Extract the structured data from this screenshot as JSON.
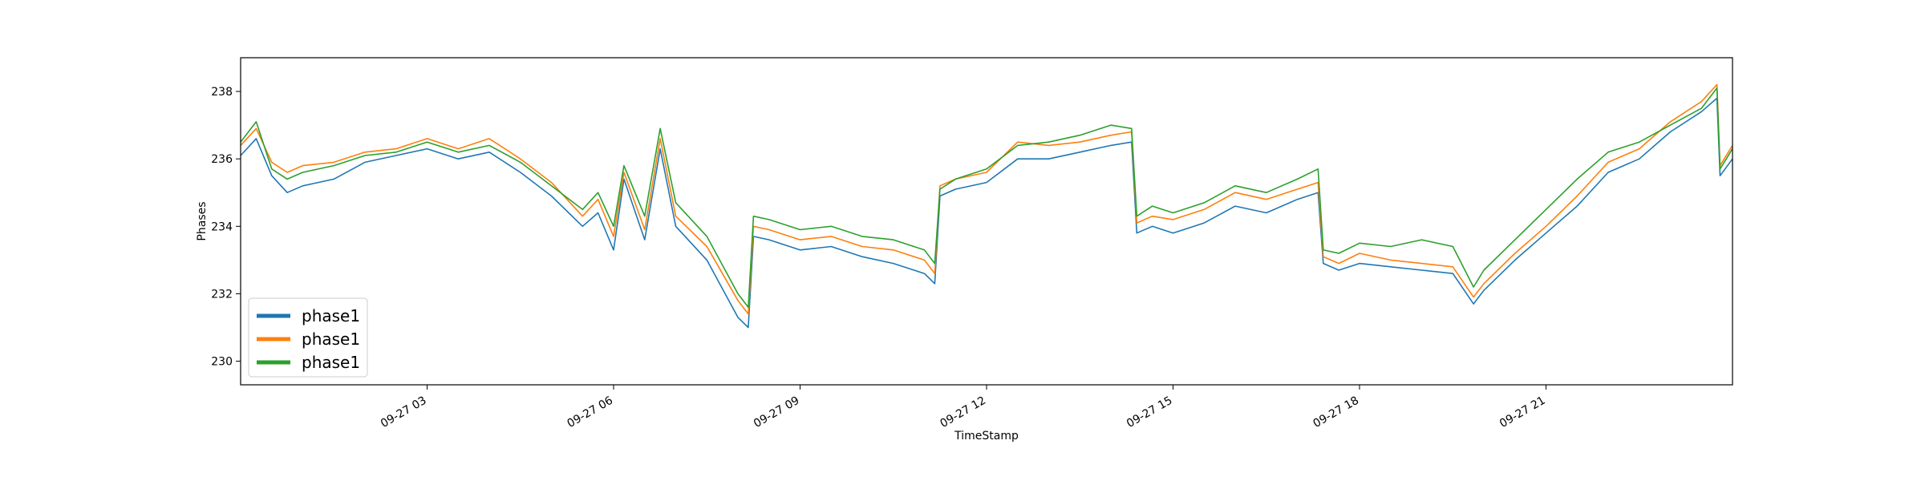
{
  "chart_data": {
    "type": "line",
    "title": "",
    "xlabel": "TimeStamp",
    "ylabel": "Phases",
    "xlim": [
      "2023-09-27 00:00",
      "2023-09-28 00:00"
    ],
    "ylim": [
      229.3,
      239.0
    ],
    "x_ticks": [
      {
        "x": "2023-09-27 03:00",
        "label": "09-27 03"
      },
      {
        "x": "2023-09-27 06:00",
        "label": "09-27 06"
      },
      {
        "x": "2023-09-27 09:00",
        "label": "09-27 09"
      },
      {
        "x": "2023-09-27 12:00",
        "label": "09-27 12"
      },
      {
        "x": "2023-09-27 15:00",
        "label": "09-27 15"
      },
      {
        "x": "2023-09-27 18:00",
        "label": "09-27 18"
      },
      {
        "x": "2023-09-27 21:00",
        "label": "09-27 21"
      }
    ],
    "y_ticks": [
      230,
      232,
      234,
      236,
      238
    ],
    "grid": false,
    "legend": {
      "placement": "lower-left",
      "entries": [
        "phase1",
        "phase1",
        "phase1"
      ]
    },
    "series": [
      {
        "name": "phase1",
        "color": "#1f77b4",
        "x": [
          "2023-09-27 00:00",
          "2023-09-27 00:15",
          "2023-09-27 00:30",
          "2023-09-27 00:45",
          "2023-09-27 01:00",
          "2023-09-27 01:30",
          "2023-09-27 02:00",
          "2023-09-27 02:30",
          "2023-09-27 03:00",
          "2023-09-27 03:30",
          "2023-09-27 04:00",
          "2023-09-27 04:30",
          "2023-09-27 05:00",
          "2023-09-27 05:30",
          "2023-09-27 05:45",
          "2023-09-27 06:00",
          "2023-09-27 06:10",
          "2023-09-27 06:30",
          "2023-09-27 06:45",
          "2023-09-27 07:00",
          "2023-09-27 07:30",
          "2023-09-27 08:00",
          "2023-09-27 08:10",
          "2023-09-27 08:15",
          "2023-09-27 08:30",
          "2023-09-27 09:00",
          "2023-09-27 09:30",
          "2023-09-27 10:00",
          "2023-09-27 10:30",
          "2023-09-27 11:00",
          "2023-09-27 11:10",
          "2023-09-27 11:15",
          "2023-09-27 11:30",
          "2023-09-27 12:00",
          "2023-09-27 12:30",
          "2023-09-27 13:00",
          "2023-09-27 13:30",
          "2023-09-27 14:00",
          "2023-09-27 14:20",
          "2023-09-27 14:25",
          "2023-09-27 14:40",
          "2023-09-27 15:00",
          "2023-09-27 15:30",
          "2023-09-27 16:00",
          "2023-09-27 16:30",
          "2023-09-27 17:00",
          "2023-09-27 17:20",
          "2023-09-27 17:25",
          "2023-09-27 17:40",
          "2023-09-27 18:00",
          "2023-09-27 18:30",
          "2023-09-27 19:00",
          "2023-09-27 19:30",
          "2023-09-27 19:50",
          "2023-09-27 20:00",
          "2023-09-27 20:30",
          "2023-09-27 21:00",
          "2023-09-27 21:30",
          "2023-09-27 22:00",
          "2023-09-27 22:30",
          "2023-09-27 23:00",
          "2023-09-27 23:30",
          "2023-09-27 23:45",
          "2023-09-27 23:48",
          "2023-09-28 00:00"
        ],
        "y": [
          236.1,
          236.6,
          235.5,
          235.0,
          235.2,
          235.4,
          235.9,
          236.1,
          236.3,
          236.0,
          236.2,
          235.6,
          234.9,
          234.0,
          234.4,
          233.3,
          235.4,
          233.6,
          236.3,
          234.0,
          233.0,
          231.3,
          231.0,
          233.7,
          233.6,
          233.3,
          233.4,
          233.1,
          232.9,
          232.6,
          232.3,
          234.9,
          235.1,
          235.3,
          236.0,
          236.0,
          236.2,
          236.4,
          236.5,
          233.8,
          234.0,
          233.8,
          234.1,
          234.6,
          234.4,
          234.8,
          235.0,
          232.9,
          232.7,
          232.9,
          232.8,
          232.7,
          232.6,
          231.7,
          232.1,
          233.0,
          233.8,
          234.6,
          235.6,
          236.0,
          236.8,
          237.4,
          237.8,
          235.5,
          236.0
        ]
      },
      {
        "name": "phase1",
        "color": "#ff7f0e",
        "x": [
          "2023-09-27 00:00",
          "2023-09-27 00:15",
          "2023-09-27 00:30",
          "2023-09-27 00:45",
          "2023-09-27 01:00",
          "2023-09-27 01:30",
          "2023-09-27 02:00",
          "2023-09-27 02:30",
          "2023-09-27 03:00",
          "2023-09-27 03:30",
          "2023-09-27 04:00",
          "2023-09-27 04:30",
          "2023-09-27 05:00",
          "2023-09-27 05:30",
          "2023-09-27 05:45",
          "2023-09-27 06:00",
          "2023-09-27 06:10",
          "2023-09-27 06:30",
          "2023-09-27 06:45",
          "2023-09-27 07:00",
          "2023-09-27 07:30",
          "2023-09-27 08:00",
          "2023-09-27 08:10",
          "2023-09-27 08:15",
          "2023-09-27 08:30",
          "2023-09-27 09:00",
          "2023-09-27 09:30",
          "2023-09-27 10:00",
          "2023-09-27 10:30",
          "2023-09-27 11:00",
          "2023-09-27 11:10",
          "2023-09-27 11:15",
          "2023-09-27 11:30",
          "2023-09-27 12:00",
          "2023-09-27 12:30",
          "2023-09-27 13:00",
          "2023-09-27 13:30",
          "2023-09-27 14:00",
          "2023-09-27 14:20",
          "2023-09-27 14:25",
          "2023-09-27 14:40",
          "2023-09-27 15:00",
          "2023-09-27 15:30",
          "2023-09-27 16:00",
          "2023-09-27 16:30",
          "2023-09-27 17:00",
          "2023-09-27 17:20",
          "2023-09-27 17:25",
          "2023-09-27 17:40",
          "2023-09-27 18:00",
          "2023-09-27 18:30",
          "2023-09-27 19:00",
          "2023-09-27 19:30",
          "2023-09-27 19:50",
          "2023-09-27 20:00",
          "2023-09-27 20:30",
          "2023-09-27 21:00",
          "2023-09-27 21:30",
          "2023-09-27 22:00",
          "2023-09-27 22:30",
          "2023-09-27 23:00",
          "2023-09-27 23:30",
          "2023-09-27 23:45",
          "2023-09-27 23:48",
          "2023-09-28 00:00"
        ],
        "y": [
          236.4,
          236.9,
          235.9,
          235.6,
          235.8,
          235.9,
          236.2,
          236.3,
          236.6,
          236.3,
          236.6,
          236.0,
          235.3,
          234.3,
          234.8,
          233.7,
          235.6,
          233.9,
          236.6,
          234.3,
          233.4,
          231.8,
          231.4,
          234.0,
          233.9,
          233.6,
          233.7,
          233.4,
          233.3,
          233.0,
          232.6,
          235.2,
          235.4,
          235.6,
          236.5,
          236.4,
          236.5,
          236.7,
          236.8,
          234.1,
          234.3,
          234.2,
          234.5,
          235.0,
          234.8,
          235.1,
          235.3,
          233.1,
          232.9,
          233.2,
          233.0,
          232.9,
          232.8,
          231.9,
          232.3,
          233.2,
          234.0,
          234.9,
          235.9,
          236.3,
          237.1,
          237.7,
          238.2,
          235.8,
          236.4
        ]
      },
      {
        "name": "phase1",
        "color": "#2ca02c",
        "x": [
          "2023-09-27 00:00",
          "2023-09-27 00:15",
          "2023-09-27 00:30",
          "2023-09-27 00:45",
          "2023-09-27 01:00",
          "2023-09-27 01:30",
          "2023-09-27 02:00",
          "2023-09-27 02:30",
          "2023-09-27 03:00",
          "2023-09-27 03:30",
          "2023-09-27 04:00",
          "2023-09-27 04:30",
          "2023-09-27 05:00",
          "2023-09-27 05:30",
          "2023-09-27 05:45",
          "2023-09-27 06:00",
          "2023-09-27 06:10",
          "2023-09-27 06:30",
          "2023-09-27 06:45",
          "2023-09-27 07:00",
          "2023-09-27 07:30",
          "2023-09-27 08:00",
          "2023-09-27 08:10",
          "2023-09-27 08:15",
          "2023-09-27 08:30",
          "2023-09-27 09:00",
          "2023-09-27 09:30",
          "2023-09-27 10:00",
          "2023-09-27 10:30",
          "2023-09-27 11:00",
          "2023-09-27 11:10",
          "2023-09-27 11:15",
          "2023-09-27 11:30",
          "2023-09-27 12:00",
          "2023-09-27 12:30",
          "2023-09-27 13:00",
          "2023-09-27 13:30",
          "2023-09-27 14:00",
          "2023-09-27 14:20",
          "2023-09-27 14:25",
          "2023-09-27 14:40",
          "2023-09-27 15:00",
          "2023-09-27 15:30",
          "2023-09-27 16:00",
          "2023-09-27 16:30",
          "2023-09-27 17:00",
          "2023-09-27 17:20",
          "2023-09-27 17:25",
          "2023-09-27 17:40",
          "2023-09-27 18:00",
          "2023-09-27 18:30",
          "2023-09-27 19:00",
          "2023-09-27 19:30",
          "2023-09-27 19:50",
          "2023-09-27 20:00",
          "2023-09-27 20:30",
          "2023-09-27 21:00",
          "2023-09-27 21:30",
          "2023-09-27 22:00",
          "2023-09-27 22:30",
          "2023-09-27 23:00",
          "2023-09-27 23:30",
          "2023-09-27 23:45",
          "2023-09-27 23:48",
          "2023-09-28 00:00"
        ],
        "y": [
          236.5,
          237.1,
          235.7,
          235.4,
          235.6,
          235.8,
          236.1,
          236.2,
          236.5,
          236.2,
          236.4,
          235.9,
          235.2,
          234.5,
          235.0,
          234.0,
          235.8,
          234.3,
          236.9,
          234.7,
          233.7,
          232.0,
          231.6,
          234.3,
          234.2,
          233.9,
          234.0,
          233.7,
          233.6,
          233.3,
          232.9,
          235.1,
          235.4,
          235.7,
          236.4,
          236.5,
          236.7,
          237.0,
          236.9,
          234.3,
          234.6,
          234.4,
          234.7,
          235.2,
          235.0,
          235.4,
          235.7,
          233.3,
          233.2,
          233.5,
          233.4,
          233.6,
          233.4,
          232.2,
          232.7,
          233.6,
          234.5,
          235.4,
          236.2,
          236.5,
          237.0,
          237.5,
          238.1,
          235.7,
          236.3
        ]
      }
    ]
  }
}
